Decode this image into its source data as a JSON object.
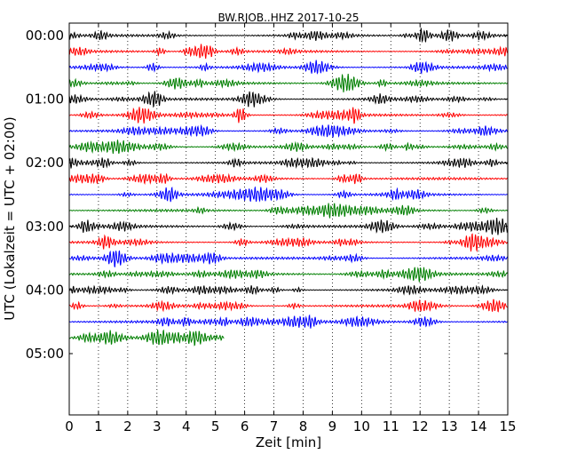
{
  "chart_data": {
    "type": "line",
    "title": "BW.RJOB..HHZ 2017-10-25",
    "xlabel": "Zeit  [min]",
    "ylabel": "UTC (Lokalzeit = UTC + 02:00)",
    "xlim": [
      0,
      15
    ],
    "x_ticks": [
      "0",
      "1",
      "2",
      "3",
      "4",
      "5",
      "6",
      "7",
      "8",
      "9",
      "10",
      "11",
      "12",
      "13",
      "14",
      "15"
    ],
    "y_tick_labels": [
      "00:00",
      "01:00",
      "02:00",
      "03:00",
      "04:00",
      "05:00"
    ],
    "grid": "vertical dotted",
    "interval_minutes": 15,
    "series_colors": [
      "#000000",
      "#ff0000",
      "#0000ff",
      "#007f00"
    ],
    "traces": [
      {
        "start": "00:00",
        "end_minute": 15,
        "color": "#000000"
      },
      {
        "start": "00:15",
        "end_minute": 15,
        "color": "#ff0000"
      },
      {
        "start": "00:30",
        "end_minute": 15,
        "color": "#0000ff"
      },
      {
        "start": "00:45",
        "end_minute": 15,
        "color": "#007f00"
      },
      {
        "start": "01:00",
        "end_minute": 15,
        "color": "#000000"
      },
      {
        "start": "01:15",
        "end_minute": 15,
        "color": "#ff0000"
      },
      {
        "start": "01:30",
        "end_minute": 15,
        "color": "#0000ff"
      },
      {
        "start": "01:45",
        "end_minute": 15,
        "color": "#007f00"
      },
      {
        "start": "02:00",
        "end_minute": 15,
        "color": "#000000"
      },
      {
        "start": "02:15",
        "end_minute": 15,
        "color": "#ff0000"
      },
      {
        "start": "02:30",
        "end_minute": 15,
        "color": "#0000ff"
      },
      {
        "start": "02:45",
        "end_minute": 15,
        "color": "#007f00"
      },
      {
        "start": "03:00",
        "end_minute": 15,
        "color": "#000000"
      },
      {
        "start": "03:15",
        "end_minute": 15,
        "color": "#ff0000"
      },
      {
        "start": "03:30",
        "end_minute": 15,
        "color": "#0000ff"
      },
      {
        "start": "03:45",
        "end_minute": 15,
        "color": "#007f00"
      },
      {
        "start": "04:00",
        "end_minute": 15,
        "color": "#000000"
      },
      {
        "start": "04:15",
        "end_minute": 15,
        "color": "#ff0000"
      },
      {
        "start": "04:30",
        "end_minute": 15,
        "color": "#0000ff"
      },
      {
        "start": "04:45",
        "end_minute": 5.3,
        "color": "#007f00"
      }
    ]
  }
}
